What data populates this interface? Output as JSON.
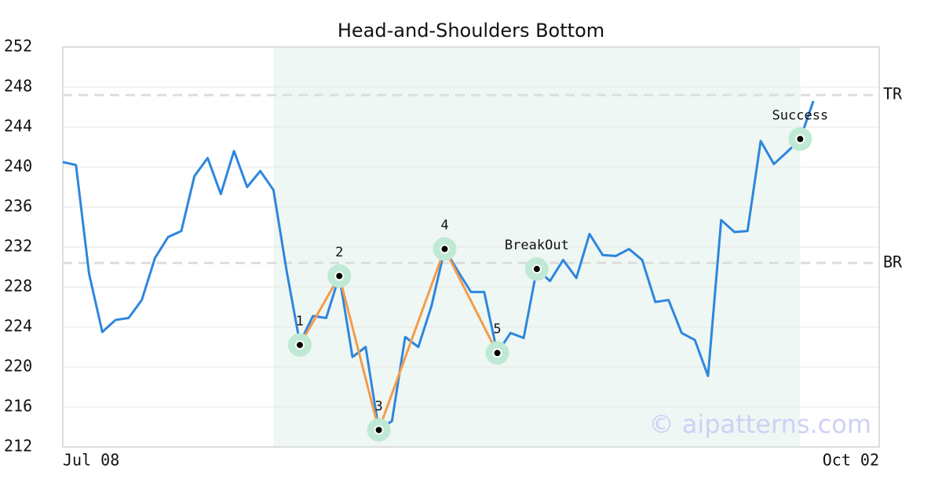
{
  "chart_data": {
    "type": "line",
    "title": "Head-and-Shoulders Bottom",
    "categories": [
      "Jul 08",
      null,
      null,
      null,
      null,
      null,
      null,
      null,
      null,
      null,
      null,
      null,
      null,
      null,
      null,
      null,
      null,
      null,
      null,
      null,
      null,
      null,
      null,
      null,
      null,
      null,
      null,
      null,
      null,
      null,
      null,
      null,
      null,
      null,
      null,
      null,
      null,
      null,
      null,
      null,
      null,
      null,
      null,
      null,
      null,
      null,
      null,
      null,
      null,
      null,
      null,
      null,
      null,
      null,
      null,
      null,
      null,
      null,
      null,
      null,
      null,
      null,
      "Oct 02"
    ],
    "series": [
      {
        "color": "#2e86de",
        "values": [
          240.5,
          240.2,
          229.3,
          223.5,
          224.7,
          224.9,
          226.7,
          230.9,
          233.0,
          233.6,
          239.1,
          240.9,
          237.3,
          241.6,
          238.0,
          239.6,
          237.7,
          229.6,
          222.4,
          225.1,
          224.9,
          229.1,
          221.0,
          222.0,
          213.7,
          214.6,
          223.0,
          222.0,
          226.1,
          231.8,
          229.6,
          227.5,
          227.5,
          221.4,
          223.4,
          222.9,
          229.8,
          228.6,
          230.7,
          228.9,
          233.3,
          231.2,
          231.1,
          231.8,
          230.7,
          226.5,
          226.7,
          223.4,
          222.7,
          219.1,
          234.7,
          233.5,
          233.6,
          242.6,
          240.3,
          241.5,
          242.8,
          246.6,
          null,
          null,
          null,
          null,
          null
        ]
      }
    ],
    "pattern": {
      "color": "#f39c4a",
      "points": [
        {
          "x": 18,
          "value": 222.2,
          "label": "1"
        },
        {
          "x": 21,
          "value": 229.1,
          "label": "2"
        },
        {
          "x": 24,
          "value": 213.7,
          "label": "3"
        },
        {
          "x": 29,
          "value": 231.8,
          "label": "4"
        },
        {
          "x": 33,
          "value": 221.4,
          "label": "5"
        }
      ]
    },
    "signals": [
      {
        "x": 36,
        "value": 229.8,
        "label": "BreakOut"
      },
      {
        "x": 56,
        "value": 242.8,
        "label": "Success"
      }
    ],
    "levels": [
      {
        "label": "TR",
        "value": 247.2
      },
      {
        "label": "BR",
        "value": 230.4
      }
    ],
    "shaded": [
      16,
      56
    ],
    "watermark": "© aipatterns.com",
    "ylim": [
      212,
      252
    ],
    "yticks": [
      212,
      216,
      220,
      224,
      228,
      232,
      236,
      240,
      244,
      248,
      252
    ],
    "grid": true
  }
}
